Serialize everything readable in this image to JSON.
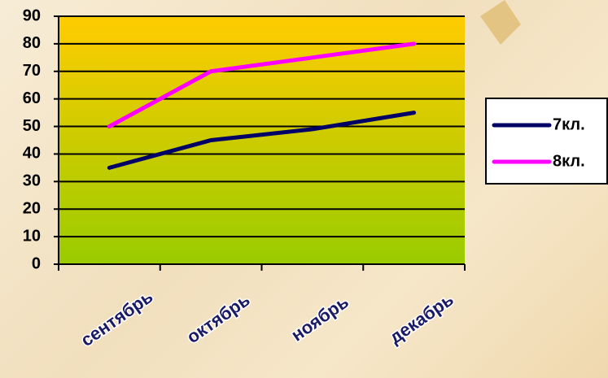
{
  "chart_data": {
    "type": "line",
    "categories": [
      "сентябрь",
      "октябрь",
      "ноябрь",
      "декабрь"
    ],
    "series": [
      {
        "name": "7кл.",
        "color": "#000066",
        "values": [
          35,
          45,
          49,
          55
        ]
      },
      {
        "name": "8кл.",
        "color": "#ff00ff",
        "values": [
          50,
          70,
          75,
          80
        ]
      }
    ],
    "ylim": [
      0,
      90
    ],
    "yticks": [
      0,
      10,
      20,
      30,
      40,
      50,
      60,
      70,
      80,
      90
    ],
    "grid": true,
    "legend": "right"
  }
}
